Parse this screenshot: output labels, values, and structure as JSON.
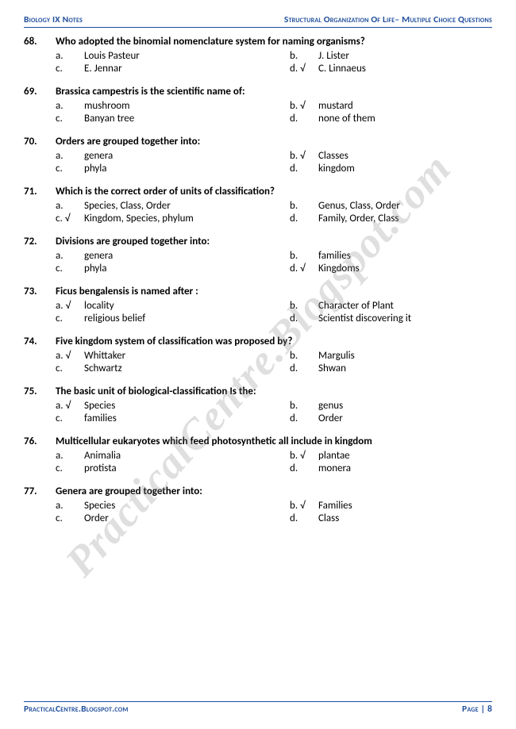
{
  "header": {
    "left": "Biology IX Notes",
    "right": "Structural Organization Of Life– Multiple Choice Questions"
  },
  "footer": {
    "left": "PracticalCentre.Blogspot.com",
    "right": "Page | 8"
  },
  "watermark": "PracticalCentre.Blogspot.com",
  "questions": [
    {
      "num": "68.",
      "text": "Who adopted the binomial nomenclature system for naming organisms?",
      "options": [
        {
          "l": "a.",
          "t": "Louis Pasteur",
          "chk": false
        },
        {
          "l": "b.",
          "t": "J. Lister",
          "chk": false
        },
        {
          "l": "c.",
          "t": "E. Jennar",
          "chk": false
        },
        {
          "l": "d.",
          "t": "C. Linnaeus",
          "chk": true
        }
      ]
    },
    {
      "num": "69.",
      "text": "Brassica campestris is the scientific name of:",
      "options": [
        {
          "l": "a.",
          "t": "mushroom",
          "chk": false
        },
        {
          "l": "b.",
          "t": "mustard",
          "chk": true
        },
        {
          "l": "c.",
          "t": "Banyan tree",
          "chk": false
        },
        {
          "l": "d.",
          "t": "none of them",
          "chk": false
        }
      ]
    },
    {
      "num": "70.",
      "text": "Orders are grouped together into:",
      "options": [
        {
          "l": "a.",
          "t": "genera",
          "chk": false
        },
        {
          "l": "b.",
          "t": "Classes",
          "chk": true
        },
        {
          "l": "c.",
          "t": "phyla",
          "chk": false
        },
        {
          "l": "d.",
          "t": "kingdom",
          "chk": false
        }
      ]
    },
    {
      "num": "71.",
      "text": "Which is the correct order of units of classification?",
      "options": [
        {
          "l": "a.",
          "t": "Species, Class, Order",
          "chk": false
        },
        {
          "l": "b.",
          "t": "Genus, Class, Order",
          "chk": false
        },
        {
          "l": "c.",
          "t": "Kingdom, Species, phylum",
          "chk": true
        },
        {
          "l": "d.",
          "t": "Family, Order, Class",
          "chk": false
        }
      ]
    },
    {
      "num": "72.",
      "text": "Divisions are grouped together into:",
      "options": [
        {
          "l": "a.",
          "t": "genera",
          "chk": false
        },
        {
          "l": "b.",
          "t": "families",
          "chk": false
        },
        {
          "l": "c.",
          "t": "phyla",
          "chk": false
        },
        {
          "l": "d.",
          "t": "Kingdoms",
          "chk": true
        }
      ]
    },
    {
      "num": "73.",
      "text": "Ficus bengalensis is named after :",
      "options": [
        {
          "l": "a.",
          "t": "locality",
          "chk": true
        },
        {
          "l": "b.",
          "t": "Character of Plant",
          "chk": false
        },
        {
          "l": "c.",
          "t": "religious belief",
          "chk": false
        },
        {
          "l": "d.",
          "t": "Scientist discovering it",
          "chk": false
        }
      ]
    },
    {
      "num": "74.",
      "text": "Five kingdom system of classification was proposed by?",
      "options": [
        {
          "l": "a.",
          "t": "Whittaker",
          "chk": true
        },
        {
          "l": "b.",
          "t": "Margulis",
          "chk": false
        },
        {
          "l": "c.",
          "t": "Schwartz",
          "chk": false
        },
        {
          "l": "d.",
          "t": "Shwan",
          "chk": false
        }
      ]
    },
    {
      "num": "75.",
      "text": "The basic unit of biological-classification Is the:",
      "options": [
        {
          "l": "a.",
          "t": "Species",
          "chk": true
        },
        {
          "l": "b.",
          "t": "genus",
          "chk": false
        },
        {
          "l": "c.",
          "t": "families",
          "chk": false
        },
        {
          "l": "d.",
          "t": "Order",
          "chk": false
        }
      ]
    },
    {
      "num": "76.",
      "text": "Multicellular eukaryotes which feed photosynthetic all include in kingdom",
      "options": [
        {
          "l": "a.",
          "t": "Animalia",
          "chk": false
        },
        {
          "l": "b.",
          "t": "plantae",
          "chk": true
        },
        {
          "l": "c.",
          "t": "protista",
          "chk": false
        },
        {
          "l": "d.",
          "t": "monera",
          "chk": false
        }
      ]
    },
    {
      "num": "77.",
      "text": "Genera are grouped together into:",
      "options": [
        {
          "l": "a.",
          "t": "Species",
          "chk": false
        },
        {
          "l": "b.",
          "t": "Families",
          "chk": true
        },
        {
          "l": "c.",
          "t": "Order",
          "chk": false
        },
        {
          "l": "d.",
          "t": "Class",
          "chk": false
        }
      ]
    }
  ],
  "styling": {
    "text_color": "#000000",
    "accent_color": "#1f4e9c",
    "background_color": "#ffffff",
    "watermark_color": "rgba(140,140,140,0.28)",
    "question_fontsize": 13,
    "header_fontsize": 11.5,
    "check_glyph": "√"
  }
}
